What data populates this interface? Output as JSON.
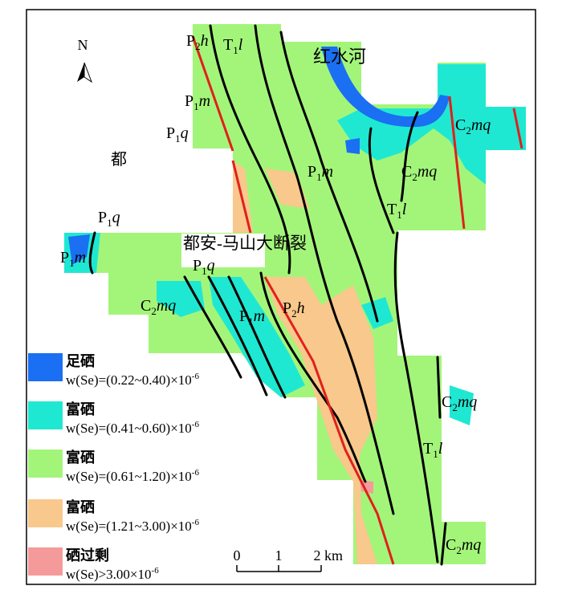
{
  "north_label": "N",
  "place_labels": [
    "红水河",
    "都",
    "都安-马山大断裂"
  ],
  "formation_labels": [
    {
      "base": "P",
      "sub": "2",
      "suffix": "h"
    },
    {
      "base": "T",
      "sub": "1",
      "suffix": "l"
    },
    {
      "base": "P",
      "sub": "1",
      "suffix": "m"
    },
    {
      "base": "P",
      "sub": "1",
      "suffix": "q"
    },
    {
      "base": "P",
      "sub": "1",
      "suffix": "m"
    },
    {
      "base": "C",
      "sub": "2",
      "suffix": "mq"
    },
    {
      "base": "C",
      "sub": "2",
      "suffix": "mq"
    },
    {
      "base": "T",
      "sub": "1",
      "suffix": "l"
    },
    {
      "base": "P",
      "sub": "1",
      "suffix": "q"
    },
    {
      "base": "P",
      "sub": "1",
      "suffix": "m"
    },
    {
      "base": "P",
      "sub": "1",
      "suffix": "q"
    },
    {
      "base": "C",
      "sub": "2",
      "suffix": "mq"
    },
    {
      "base": "P",
      "sub": "1",
      "suffix": "m"
    },
    {
      "base": "P",
      "sub": "2",
      "suffix": "h"
    },
    {
      "base": "C",
      "sub": "2",
      "suffix": "mq"
    },
    {
      "base": "T",
      "sub": "1",
      "suffix": "l"
    },
    {
      "base": "C",
      "sub": "2",
      "suffix": "mq"
    }
  ],
  "legend": [
    {
      "name": "足硒",
      "formula": "w(Se)=(0.22~0.40)×10",
      "exponent": "-6",
      "color": "#1a6ff2"
    },
    {
      "name": "富硒",
      "formula": "w(Se)=(0.41~0.60)×10",
      "exponent": "-6",
      "color": "#1fe8d2"
    },
    {
      "name": "富硒",
      "formula": "w(Se)=(0.61~1.20)×10",
      "exponent": "-6",
      "color": "#a3f57a"
    },
    {
      "name": "富硒",
      "formula": "w(Se)=(1.21~3.00)×10",
      "exponent": "-6",
      "color": "#f8c88c"
    },
    {
      "name": "硒过剩",
      "formula": "w(Se)>3.00×10",
      "exponent": "-6",
      "color": "#f59a9a"
    }
  ],
  "scale_bar": {
    "ticks": [
      "0",
      "1",
      "2"
    ],
    "unit": "km"
  }
}
